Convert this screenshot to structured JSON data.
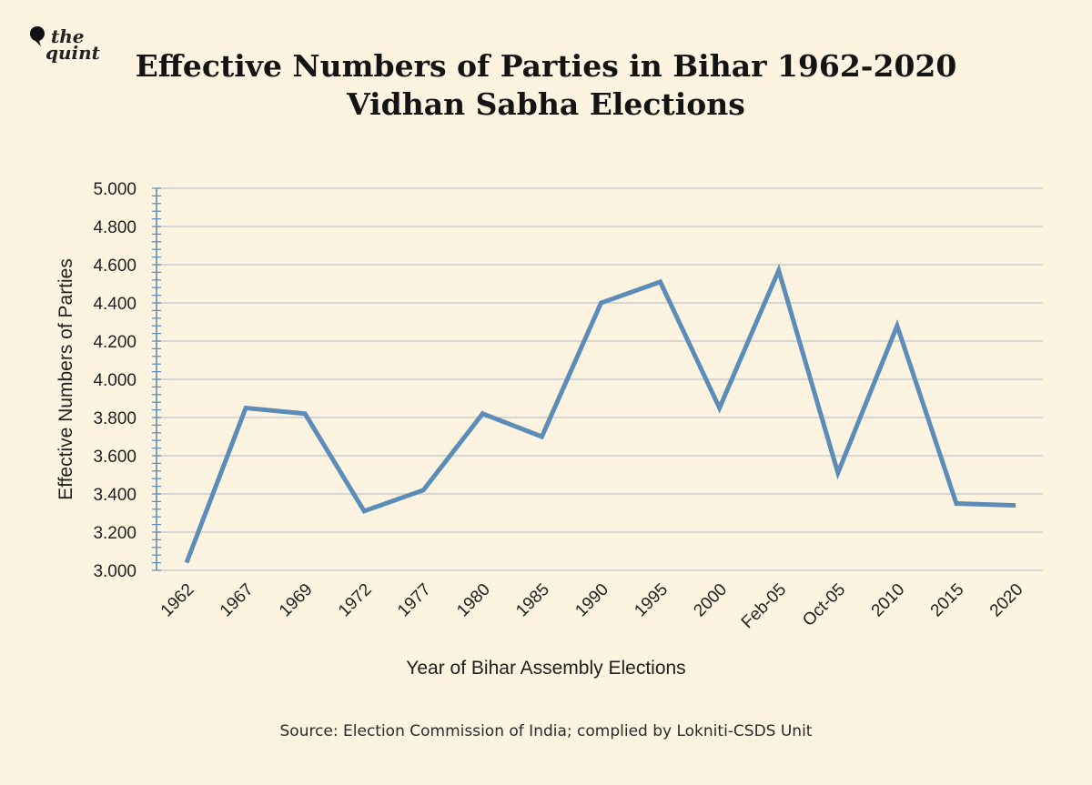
{
  "logo": {
    "line1": "the",
    "line2": "quint"
  },
  "title": {
    "line1": "Effective Numbers of Parties in Bihar 1962-2020",
    "line2": "Vidhan Sabha Elections"
  },
  "source": "Source: Election Commission of India; complied by Lokniti-CSDS Unit",
  "colors": {
    "background": "#fdf3e1",
    "line": "#5b8db8",
    "grid": "#c9cdd0",
    "axis": "#5b8db8"
  },
  "chart_data": {
    "type": "line",
    "title": "Effective Numbers of Parties in Bihar 1962-2020 Vidhan Sabha Elections",
    "xlabel": "Year of Bihar Assembly Elections",
    "ylabel": "Effective Numbers of Parties",
    "categories": [
      "1962",
      "1967",
      "1969",
      "1972",
      "1977",
      "1980",
      "1985",
      "1990",
      "1995",
      "2000",
      "Feb-05",
      "Oct-05",
      "2010",
      "2015",
      "2020"
    ],
    "series": [
      {
        "values": [
          3.04,
          3.85,
          3.82,
          3.31,
          3.42,
          3.82,
          3.7,
          4.4,
          4.51,
          3.85,
          4.57,
          3.51,
          4.28,
          3.35,
          3.34
        ]
      }
    ],
    "ylim": [
      3.0,
      5.0
    ],
    "yticks": [
      "3.000",
      "3.200",
      "3.400",
      "3.600",
      "3.800",
      "4.000",
      "4.200",
      "4.400",
      "4.600",
      "4.800",
      "5.000"
    ],
    "grid": true,
    "legend": "none"
  }
}
